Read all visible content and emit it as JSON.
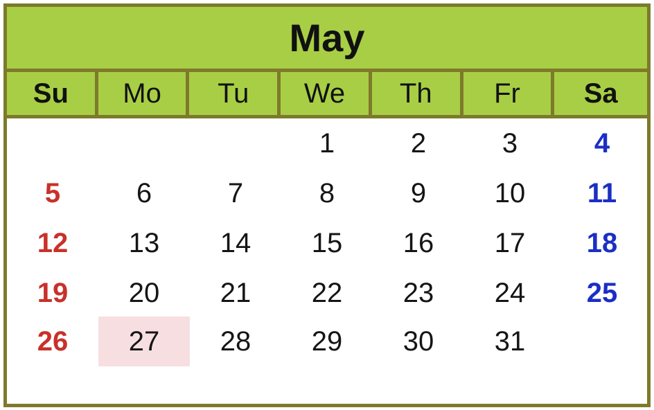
{
  "calendar": {
    "month": "May",
    "weekdays": [
      "Su",
      "Mo",
      "Tu",
      "We",
      "Th",
      "Fr",
      "Sa"
    ],
    "first_weekday_index": 3,
    "days": [
      "1",
      "2",
      "3",
      "4",
      "5",
      "6",
      "7",
      "8",
      "9",
      "10",
      "11",
      "12",
      "13",
      "14",
      "15",
      "16",
      "17",
      "18",
      "19",
      "20",
      "21",
      "22",
      "23",
      "24",
      "25",
      "26",
      "27",
      "28",
      "29",
      "30",
      "31"
    ],
    "highlighted_day": "27",
    "colors": {
      "header_green": "#a8ce45",
      "border_olive": "#7d7a2b",
      "sunday_red": "#c8312a",
      "saturday_blue": "#1b2fc4",
      "highlight_pink": "#f7dfe1",
      "text_dark": "#151515"
    }
  }
}
